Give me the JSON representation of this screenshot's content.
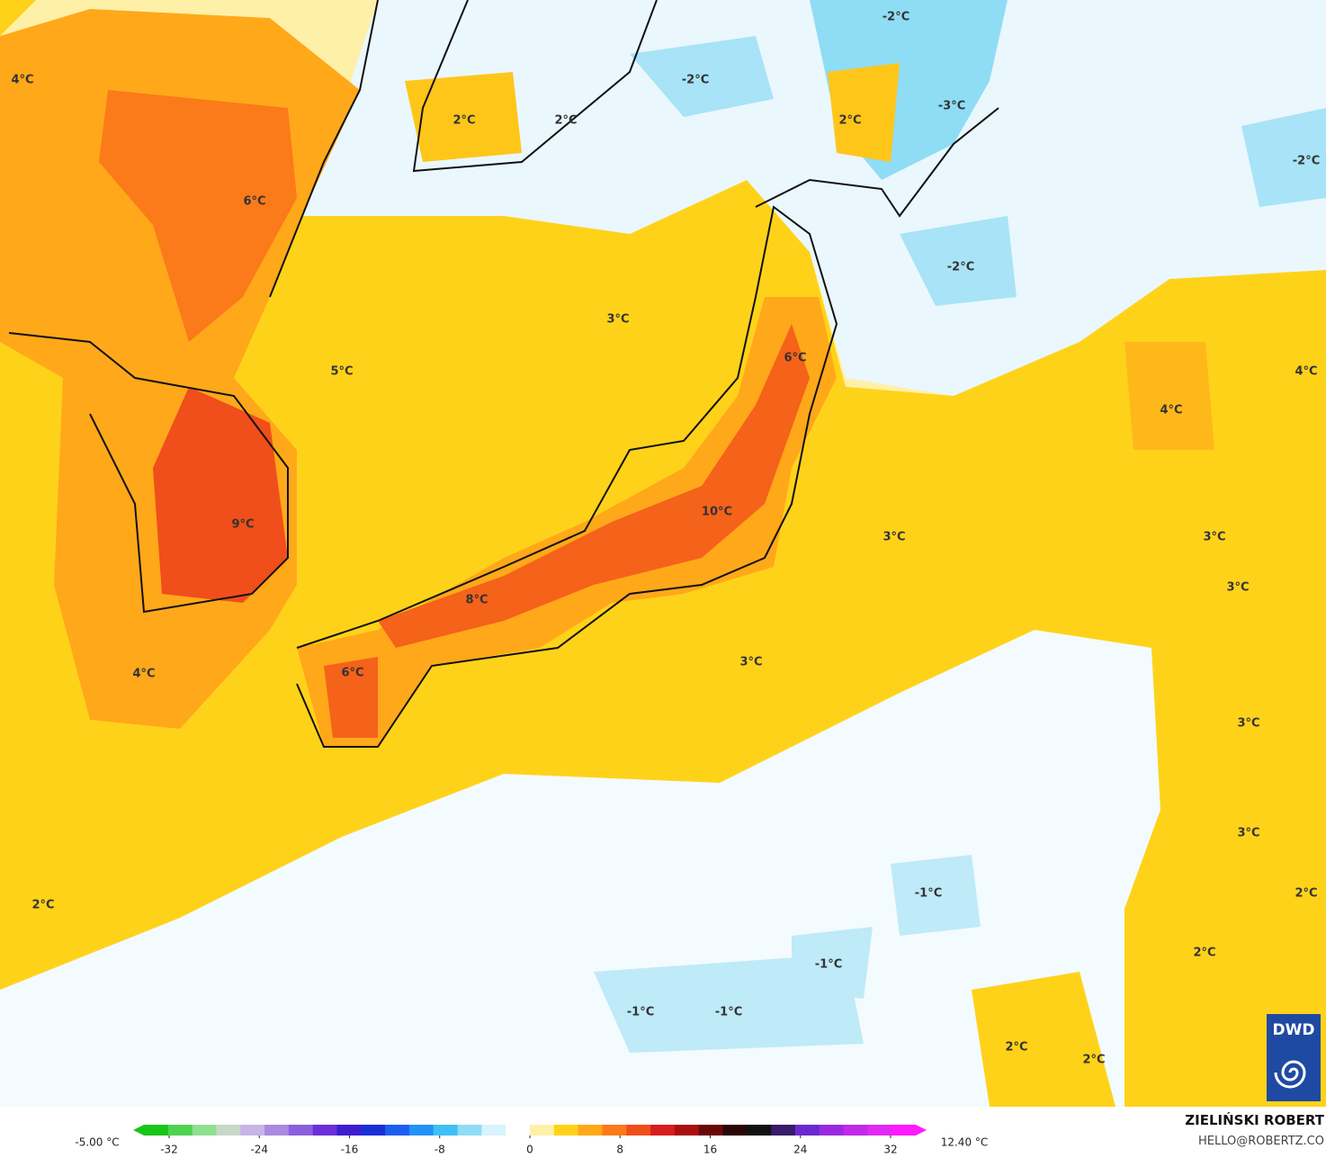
{
  "map": {
    "labels": [
      "4°C",
      "2°C",
      "2°C",
      "-2°C",
      "-2°C",
      "2°C",
      "-3°C",
      "-2°C",
      "6°C",
      "-2°C",
      "3°C",
      "5°C",
      "6°C",
      "4°C",
      "4°C",
      "9°C",
      "10°C",
      "3°C",
      "3°C",
      "3°C",
      "8°C",
      "3°C",
      "6°C",
      "4°C",
      "3°C",
      "3°C",
      "-1°C",
      "2°C",
      "2°C",
      "2°C",
      "-1°C",
      "-1°C",
      "-1°C",
      "2°C",
      "2°C"
    ]
  },
  "colorbar": {
    "min_label": "-5.00 °C",
    "max_label": "12.40 °C",
    "range": [
      -32,
      32
    ],
    "ticks": [
      -32,
      -24,
      -16,
      -8,
      0,
      8,
      16,
      24,
      32
    ]
  },
  "credit": {
    "name": "ZIELIŃSKI ROBERT",
    "email": "HELLO@ROBERTZ.CO"
  },
  "logo": "DWD"
}
